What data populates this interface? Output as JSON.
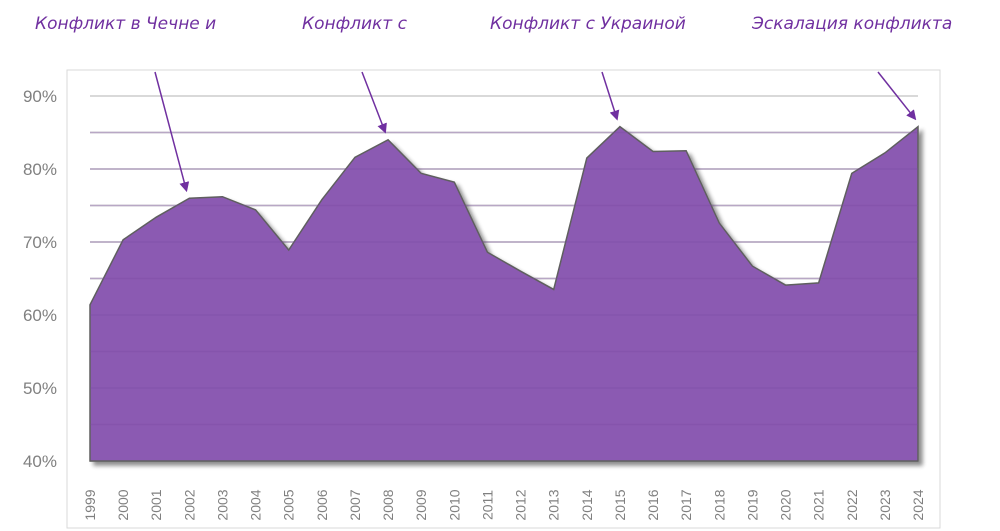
{
  "chart_data": {
    "type": "area",
    "title": "",
    "xlabel": "",
    "ylabel": "",
    "x": [
      "1999",
      "2000",
      "2001",
      "2002",
      "2003",
      "2004",
      "2005",
      "2006",
      "2007",
      "2008",
      "2009",
      "2010",
      "2011",
      "2012",
      "2013",
      "2014",
      "2015",
      "2016",
      "2017",
      "2018",
      "2019",
      "2020",
      "2021",
      "2022",
      "2023",
      "2024"
    ],
    "series": [
      {
        "name": "",
        "values": [
          61.4,
          70.3,
          73.4,
          76.0,
          76.2,
          74.4,
          68.9,
          75.8,
          81.6,
          84.0,
          79.4,
          78.2,
          68.6,
          66.0,
          63.5,
          81.5,
          85.8,
          82.4,
          82.5,
          72.6,
          66.7,
          64.1,
          64.4,
          79.4,
          82.2,
          85.8
        ]
      }
    ],
    "ylim": [
      40,
      90
    ],
    "yticks": [
      "40%",
      "50%",
      "60%",
      "70%",
      "80%",
      "90%"
    ],
    "grid": true,
    "colors": {
      "fill": "#8b5ab2",
      "line": "#5f5f5f",
      "annotation": "#7030a0",
      "grid": "#d9d9d9"
    },
    "annotations": [
      {
        "text": "Конфликт в Чечне и",
        "target_year": "2002"
      },
      {
        "text": "Конфликт с",
        "target_year": "2008"
      },
      {
        "text": "Конфликт с Украиной",
        "target_year": "2015"
      },
      {
        "text": "Эскалация конфликта",
        "target_year": "2024"
      }
    ]
  }
}
